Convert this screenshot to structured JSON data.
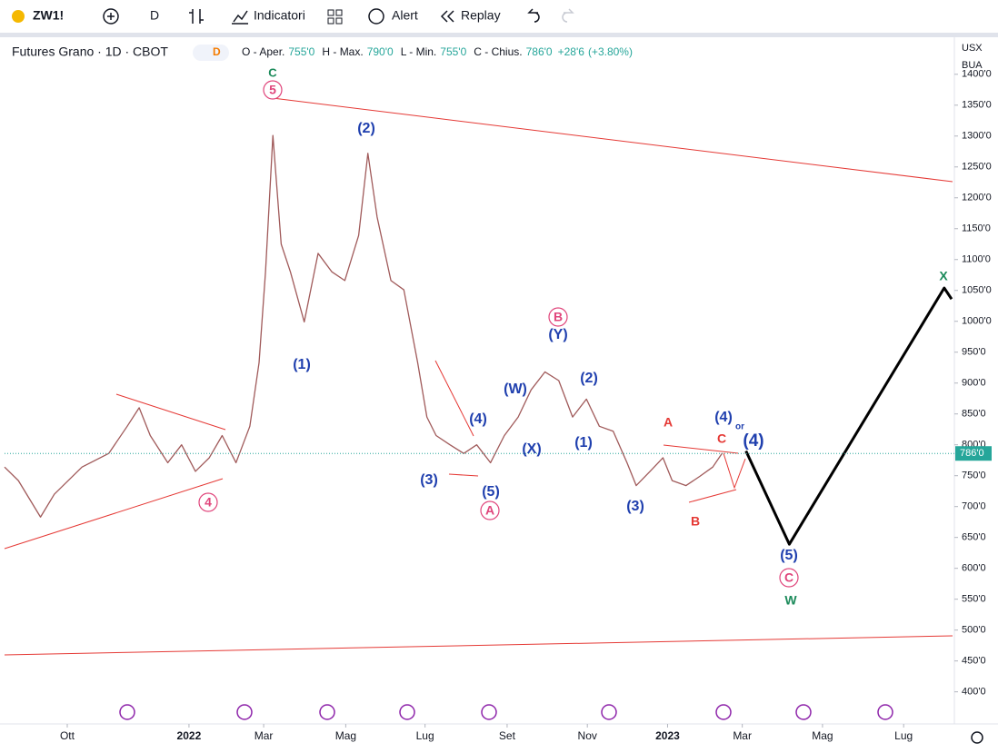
{
  "toolbar": {
    "symbol": "ZW1!",
    "interval": "D",
    "indicators": "Indicatori",
    "alert": "Alert",
    "replay": "Replay"
  },
  "legend": {
    "title": "Futures Grano · 1D · CBOT",
    "badge": "D",
    "ohlc": [
      {
        "key": "O - Aper.",
        "value": "755'0"
      },
      {
        "key": "H - Max.",
        "value": "790'0"
      },
      {
        "key": "L - Min.",
        "value": "755'0"
      },
      {
        "key": "C - Chius.",
        "value": "786'0"
      }
    ],
    "change": "+28'6",
    "change_pct": "(+3.80%)"
  },
  "units": {
    "currency": "USX",
    "source": "BUA"
  },
  "chart_data": {
    "type": "line",
    "xlim": [
      0,
      103
    ],
    "xticks": [
      {
        "value": 6.8,
        "label": "Ott"
      },
      {
        "value": 20,
        "label": "2022"
      },
      {
        "value": 28.1,
        "label": "Mar"
      },
      {
        "value": 37,
        "label": "Mag"
      },
      {
        "value": 45.6,
        "label": "Lug"
      },
      {
        "value": 54.5,
        "label": "Set"
      },
      {
        "value": 63.2,
        "label": "Nov"
      },
      {
        "value": 71.9,
        "label": "2023"
      },
      {
        "value": 80,
        "label": "Mar"
      },
      {
        "value": 88.7,
        "label": "Mag"
      },
      {
        "value": 97.5,
        "label": "Lug"
      }
    ],
    "ylim": [
      348,
      1460
    ],
    "yticks": [
      {
        "value": 400,
        "label": "400'0"
      },
      {
        "value": 450,
        "label": "450'0"
      },
      {
        "value": 500,
        "label": "500'0"
      },
      {
        "value": 550,
        "label": "550'0"
      },
      {
        "value": 600,
        "label": "600'0"
      },
      {
        "value": 650,
        "label": "650'0"
      },
      {
        "value": 700,
        "label": "700'0"
      },
      {
        "value": 750,
        "label": "750'0"
      },
      {
        "value": 800,
        "label": "800'0"
      },
      {
        "value": 850,
        "label": "850'0"
      },
      {
        "value": 900,
        "label": "900'0"
      },
      {
        "value": 950,
        "label": "950'0"
      },
      {
        "value": 1000,
        "label": "1000'0"
      },
      {
        "value": 1050,
        "label": "1050'0"
      },
      {
        "value": 1100,
        "label": "1100'0"
      },
      {
        "value": 1150,
        "label": "1150'0"
      },
      {
        "value": 1200,
        "label": "1200'0"
      },
      {
        "value": 1250,
        "label": "1250'0"
      },
      {
        "value": 1300,
        "label": "1300'0"
      },
      {
        "value": 1350,
        "label": "1350'0"
      },
      {
        "value": 1400,
        "label": "1400'0"
      }
    ],
    "grid": false,
    "series": [
      {
        "color": "#a05a5a",
        "x": [
          0,
          1.5,
          3.9,
          5.4,
          8.4,
          11.3,
          13.3,
          14.6,
          15.8,
          17.7,
          19.2,
          20.7,
          22.2,
          23.6,
          25.1,
          26.6,
          27.6,
          28.3,
          29.1,
          30,
          31,
          32.5,
          34,
          35.5,
          36.9,
          38.4,
          39.4,
          40.4,
          41.9,
          43.3,
          44.8,
          45.8,
          46.8,
          48.3,
          49.8,
          51.2,
          52.7,
          54.2,
          55.7,
          57.1,
          58.6,
          60.1,
          61.6,
          63.1,
          64.5,
          66,
          67.5,
          68.5,
          70,
          71.4,
          72.4,
          73.9,
          75.4,
          76.8,
          77.8
        ],
        "values": [
          764,
          742,
          683,
          720,
          764,
          786,
          830,
          860,
          815,
          771,
          800,
          757,
          779,
          815,
          771,
          830,
          933,
          1080,
          1301,
          1125,
          1080,
          999,
          1110,
          1080,
          1066,
          1139,
          1272,
          1169,
          1066,
          1051,
          933,
          845,
          815,
          800,
          786,
          800,
          771,
          815,
          845,
          889,
          918,
          904,
          845,
          874,
          830,
          822,
          771,
          734,
          757,
          779,
          742,
          734,
          749,
          764,
          786
        ]
      },
      {
        "color": "#000000",
        "x": [
          80.4,
          85.1,
          101.9,
          102.7
        ],
        "values": [
          790,
          639,
          1054,
          1036
        ]
      }
    ],
    "last_price": {
      "value": 786,
      "label": "786'0"
    },
    "annotations": [
      {
        "text": "C",
        "color": "#1b8a5a",
        "circled": false
      },
      {
        "text": "5",
        "color": "#e0457b",
        "circled": true
      },
      {
        "text": "(2)",
        "color": "#1f3fae",
        "circled": false
      },
      {
        "text": "(1)",
        "color": "#1f3fae",
        "circled": false
      },
      {
        "text": "4",
        "color": "#e0457b",
        "circled": true
      },
      {
        "text": "(3)",
        "color": "#1f3fae",
        "circled": false
      },
      {
        "text": "(4)",
        "color": "#1f3fae",
        "circled": false
      },
      {
        "text": "(5)",
        "color": "#1f3fae",
        "circled": false
      },
      {
        "text": "A",
        "color": "#e0457b",
        "circled": true
      },
      {
        "text": "(W)",
        "color": "#1f3fae",
        "circled": false
      },
      {
        "text": "(X)",
        "color": "#1f3fae",
        "circled": false
      },
      {
        "text": "B",
        "color": "#e0457b",
        "circled": true
      },
      {
        "text": "(Y)",
        "color": "#1f3fae",
        "circled": false
      },
      {
        "text": "(2)",
        "color": "#1f3fae",
        "circled": false
      },
      {
        "text": "(1)",
        "color": "#1f3fae",
        "circled": false
      },
      {
        "text": "(3)",
        "color": "#1f3fae",
        "circled": false
      },
      {
        "text": "A",
        "color": "#e53935",
        "circled": false
      },
      {
        "text": "B",
        "color": "#e53935",
        "circled": false
      },
      {
        "text": "C",
        "color": "#e53935",
        "circled": false
      },
      {
        "text": "(4)",
        "color": "#1f3fae",
        "circled": false
      },
      {
        "text": "or",
        "color": "#1f3fae",
        "circled": false
      },
      {
        "text": "(4)",
        "color": "#1f3fae",
        "circled": false
      },
      {
        "text": "(5)",
        "color": "#1f3fae",
        "circled": false
      },
      {
        "text": "C",
        "color": "#e0457b",
        "circled": true
      },
      {
        "text": "W",
        "color": "#1b8a5a",
        "circled": false
      },
      {
        "text": "X",
        "color": "#1b8a5a",
        "circled": false
      }
    ]
  }
}
